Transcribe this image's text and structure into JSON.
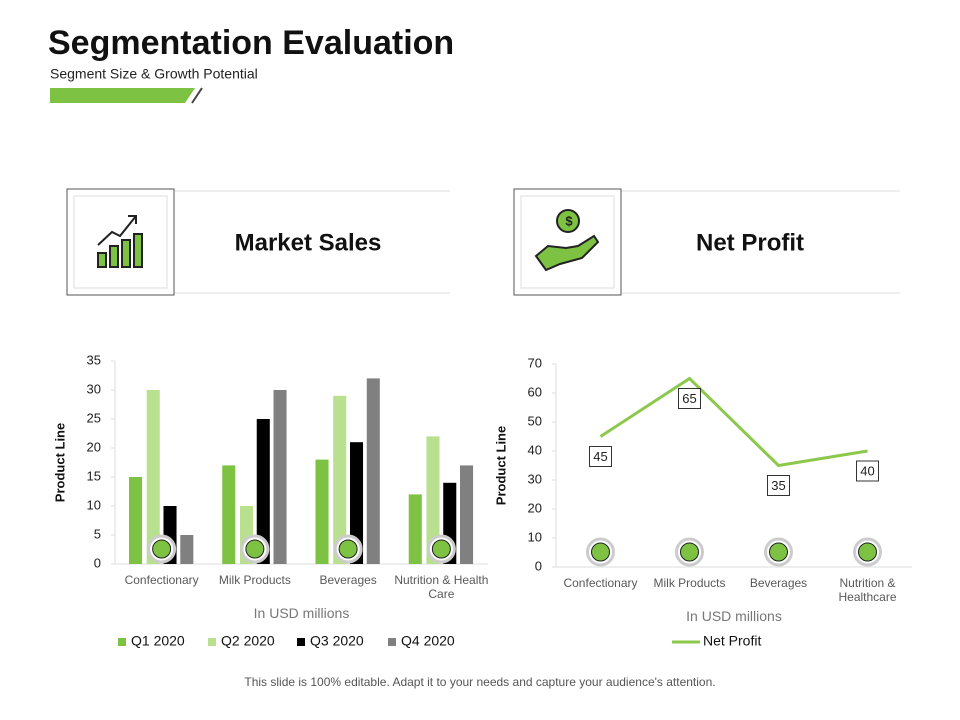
{
  "header": {
    "title": "Segmentation Evaluation",
    "subtitle": "Segment Size & Growth Potential"
  },
  "panels": [
    "Market Sales",
    "Net Profit"
  ],
  "footer": "This slide is 100% editable. Adapt it to your needs and capture your audience's attention.",
  "chart_data": [
    {
      "type": "bar",
      "y_label": "Product Line",
      "x_label": "In USD millions",
      "categories": [
        "Confectionary",
        "Milk Products",
        "Beverages",
        "Nutrition & Health Care"
      ],
      "series": [
        {
          "name": "Q1 2020",
          "color": "#7dc242",
          "values": [
            15,
            17,
            18,
            12
          ]
        },
        {
          "name": "Q2 2020",
          "color": "#b9e08f",
          "values": [
            30,
            10,
            29,
            22
          ]
        },
        {
          "name": "Q3 2020",
          "color": "#000000",
          "values": [
            10,
            25,
            21,
            14
          ]
        },
        {
          "name": "Q4 2020",
          "color": "#808080",
          "values": [
            5,
            30,
            32,
            17
          ]
        }
      ],
      "ylim": [
        0,
        35
      ],
      "yticks": [
        0,
        5,
        10,
        15,
        20,
        25,
        30,
        35
      ]
    },
    {
      "type": "line",
      "y_label": "Product Line",
      "x_label": "In USD millions",
      "categories": [
        "Confectionary",
        "Milk Products",
        "Beverages",
        "Nutrition & Healthcare"
      ],
      "series": [
        {
          "name": "Net Profit",
          "color": "#8cc84b",
          "values": [
            45,
            65,
            35,
            40
          ]
        }
      ],
      "ylim": [
        0,
        70
      ],
      "yticks": [
        0,
        10,
        20,
        30,
        40,
        50,
        60,
        70
      ]
    }
  ]
}
